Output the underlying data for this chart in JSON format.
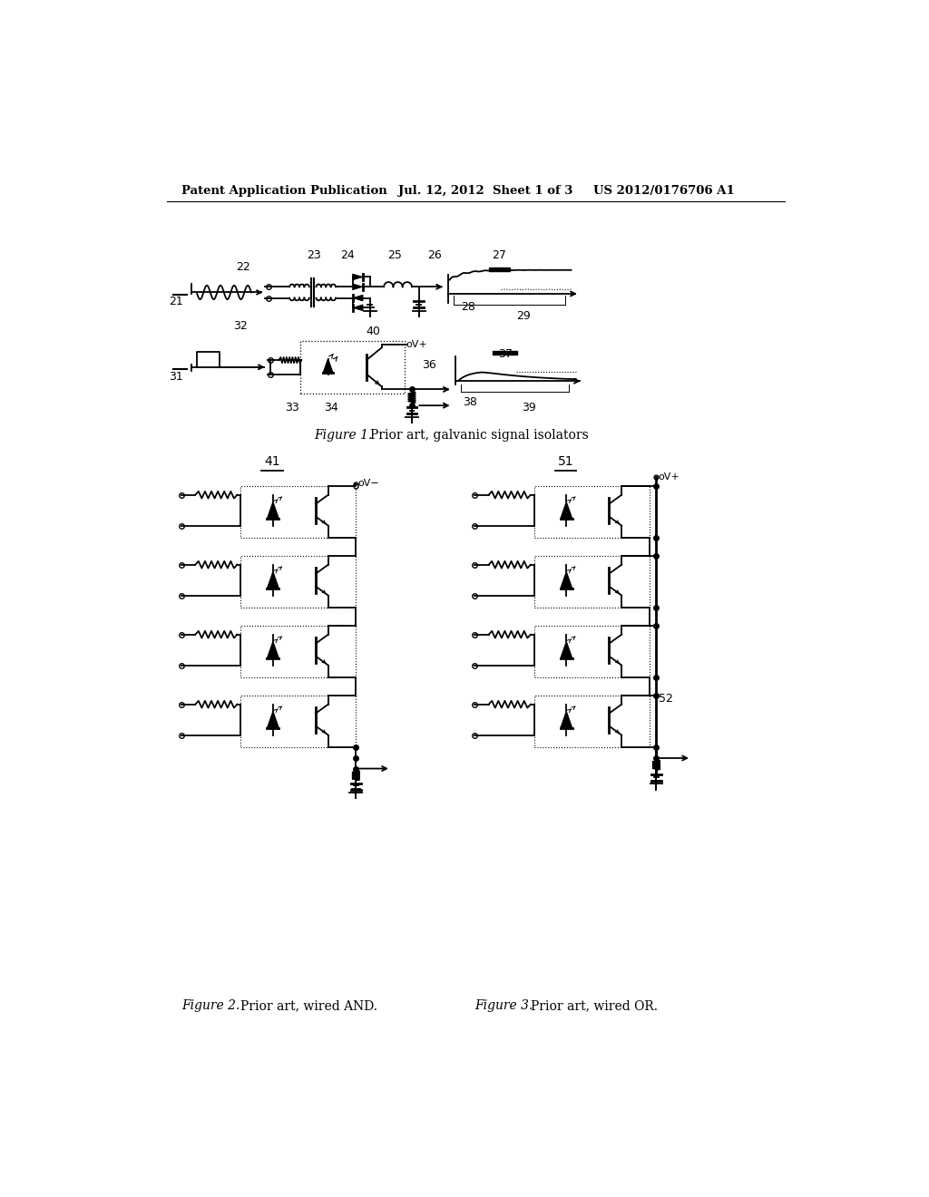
{
  "bg_color": "#ffffff",
  "header_left": "Patent Application Publication",
  "header_mid": "Jul. 12, 2012  Sheet 1 of 3",
  "header_right": "US 2012/0176706 A1",
  "fig1_caption_left": "Figure 1.",
  "fig1_caption_right": "Prior art, galvanic signal isolators",
  "fig2_caption_left": "Figure 2.",
  "fig2_caption_right": "Prior art, wired AND.",
  "fig3_caption_left": "Figure 3.",
  "fig3_caption_right": "Prior art, wired OR."
}
